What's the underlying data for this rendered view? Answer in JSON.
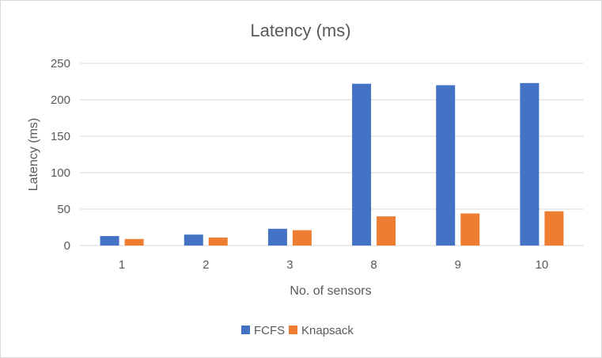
{
  "chart_data": {
    "type": "bar",
    "title": "Latency (ms)",
    "xlabel": "No. of sensors",
    "ylabel": "Latency (ms)",
    "categories": [
      "1",
      "2",
      "3",
      "8",
      "9",
      "10"
    ],
    "series": [
      {
        "name": "FCFS",
        "color": "#4472c4",
        "values": [
          13,
          15,
          23,
          222,
          220,
          223
        ]
      },
      {
        "name": "Knapsack",
        "color": "#ed7d31",
        "values": [
          9,
          11,
          21,
          40,
          44,
          47
        ]
      }
    ],
    "ylim": [
      0,
      250
    ],
    "yticks": [
      0,
      50,
      100,
      150,
      200,
      250
    ],
    "grid": true,
    "legend_position": "bottom"
  }
}
